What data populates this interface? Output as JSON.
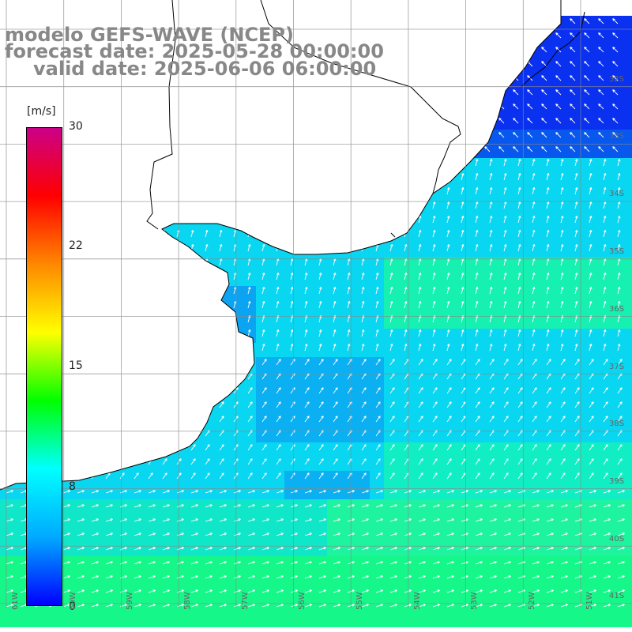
{
  "title": {
    "line1": "modelo GEFS-WAVE (NCEP)",
    "line2": "forecast date: 2025-05-28 00:00:00",
    "line3": "valid date: 2025-06-06 06:00:00"
  },
  "colorbar": {
    "unit": "[m/s]",
    "ticks": [
      "30",
      "22",
      "15",
      "8",
      "0"
    ],
    "range": [
      0,
      30
    ],
    "colors": [
      "#0000ff",
      "#00aaff",
      "#00ffff",
      "#00ff00",
      "#ffff00",
      "#ff8800",
      "#ff0000",
      "#cc0088"
    ]
  },
  "map": {
    "land_color": "#ffffff",
    "grid_color": "#888888",
    "coast_color": "#000000",
    "arrow_color": "#ffffff",
    "lat_labels": [
      "32S",
      "33S",
      "34S",
      "35S",
      "36S",
      "37S",
      "38S",
      "39S",
      "40S",
      "41S"
    ],
    "lon_labels": [
      "61W",
      "60W",
      "59W",
      "58W",
      "57W",
      "56W",
      "55W",
      "54W",
      "53W",
      "52W",
      "51W"
    ]
  }
}
